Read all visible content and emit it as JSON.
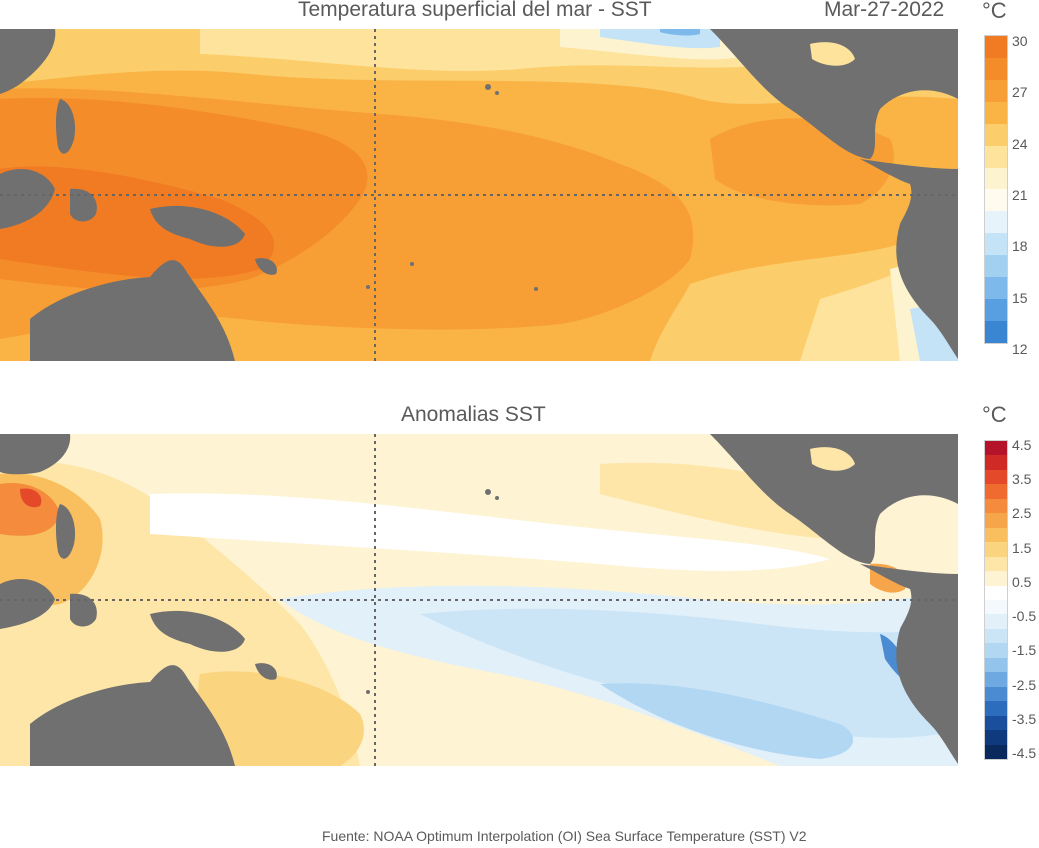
{
  "top": {
    "title": "Temperatura superficial del mar - SST",
    "date": "Mar-27-2022",
    "unit": "°C",
    "colorbar_ticks": [
      "30",
      "27",
      "24",
      "21",
      "18",
      "15",
      "12"
    ],
    "colorbar_colors": [
      "#f07b23",
      "#f48c2a",
      "#f79e35",
      "#fab445",
      "#fbcd6b",
      "#fde39c",
      "#fef3cf",
      "#fffbee",
      "#e6f3fb",
      "#c4e3f7",
      "#a2d0f1",
      "#7db9ea",
      "#579fe0",
      "#3b86d3"
    ]
  },
  "bottom": {
    "title": "Anomalias SST",
    "unit": "°C",
    "colorbar_ticks": [
      "4.5",
      "3.5",
      "2.5",
      "1.5",
      "0.5",
      "-0.5",
      "-1.5",
      "-2.5",
      "-3.5",
      "-4.5"
    ],
    "colorbar_colors": [
      "#b4132a",
      "#cf2a25",
      "#e4492a",
      "#ef6b30",
      "#f48b3d",
      "#f7a54b",
      "#f9bf5e",
      "#fbd47f",
      "#fde6a7",
      "#fef3d2",
      "#ffffff",
      "#f4f9fd",
      "#e2f0fa",
      "#cbe5f7",
      "#b1d7f3",
      "#93c4ec",
      "#6fa9e1",
      "#4a8bd2",
      "#2d6dbd",
      "#1a4f9e",
      "#0f3a7e",
      "#0a2a5e"
    ]
  },
  "source": "Fuente: NOAA Optimum Interpolation (OI) Sea Surface Temperature (SST) V2"
}
